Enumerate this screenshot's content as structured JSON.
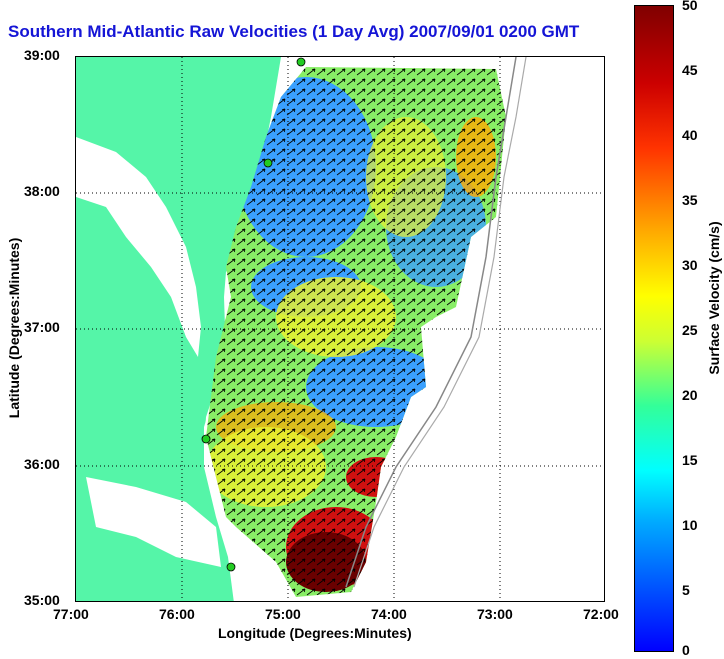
{
  "title": "Southern Mid-Atlantic Raw Velocities (1 Day Avg) 2007/09/01 0200 GMT",
  "x_axis": {
    "label": "Longitude (Degrees:Minutes)",
    "ticks": [
      "77:00",
      "76:00",
      "75:00",
      "74:00",
      "73:00",
      "72:00"
    ]
  },
  "y_axis": {
    "label": "Latitude (Degrees:Minutes)",
    "ticks": [
      "39:00",
      "38:00",
      "37:00",
      "36:00",
      "35:00"
    ]
  },
  "colorbar": {
    "label": "Surface Velocity (cm/s)",
    "ticks": [
      "50",
      "45",
      "40",
      "35",
      "30",
      "25",
      "20",
      "15",
      "10",
      "5",
      "0"
    ],
    "colors": [
      "#0000ff",
      "#00ffff",
      "#ffff00",
      "#ff3300",
      "#800000"
    ]
  },
  "map_colors": {
    "land": "#55f5a8",
    "water_blue": "#3aa0ff",
    "water_green": "#88ee66",
    "water_yellow": "#e8f030",
    "water_red": "#d01010",
    "water_darkred": "#6a0000"
  }
}
